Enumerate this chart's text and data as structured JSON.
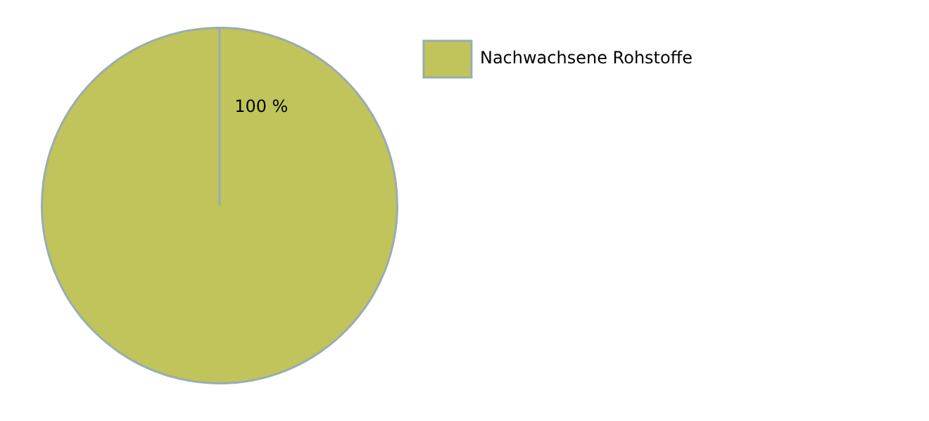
{
  "chart_data": {
    "type": "pie",
    "categories": [
      "Nachwachsene Rohstoffe"
    ],
    "values": [
      100
    ],
    "colors": [
      "#c0c45a"
    ],
    "value_labels": [
      "100 %"
    ],
    "legend": "right"
  }
}
